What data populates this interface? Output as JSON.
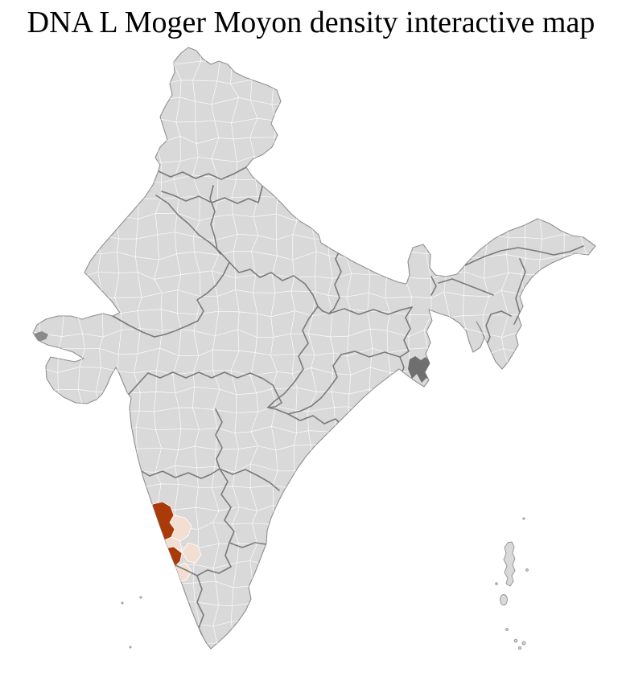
{
  "title": "DNA L Moger Moyon density interactive map",
  "map": {
    "description": "India district-level choropleth with two dark highlighted coastal districts and adjacent pale-shaded districts in coastal Karnataka (south-west India)",
    "colors": {
      "background": "#ffffff",
      "land": "#d9d9d9",
      "district_border": "#ffffff",
      "state_border": "#7a7a7a",
      "coastline": "#8f8f8f",
      "high_density": "#aa3a08",
      "low_density": "#f3ded2",
      "delta_marsh": "#6f6f6f"
    },
    "highlights": [
      {
        "id": "coastal-district-north",
        "level": "high",
        "color": "#aa3a08"
      },
      {
        "id": "coastal-district-south",
        "level": "high",
        "color": "#aa3a08"
      },
      {
        "id": "adjacent-district-1",
        "level": "low",
        "color": "#f3ded2"
      },
      {
        "id": "adjacent-district-2",
        "level": "low",
        "color": "#f3ded2"
      },
      {
        "id": "adjacent-district-3",
        "level": "low",
        "color": "#f3ded2"
      },
      {
        "id": "adjacent-district-4",
        "level": "low",
        "color": "#f3ded2"
      }
    ]
  }
}
